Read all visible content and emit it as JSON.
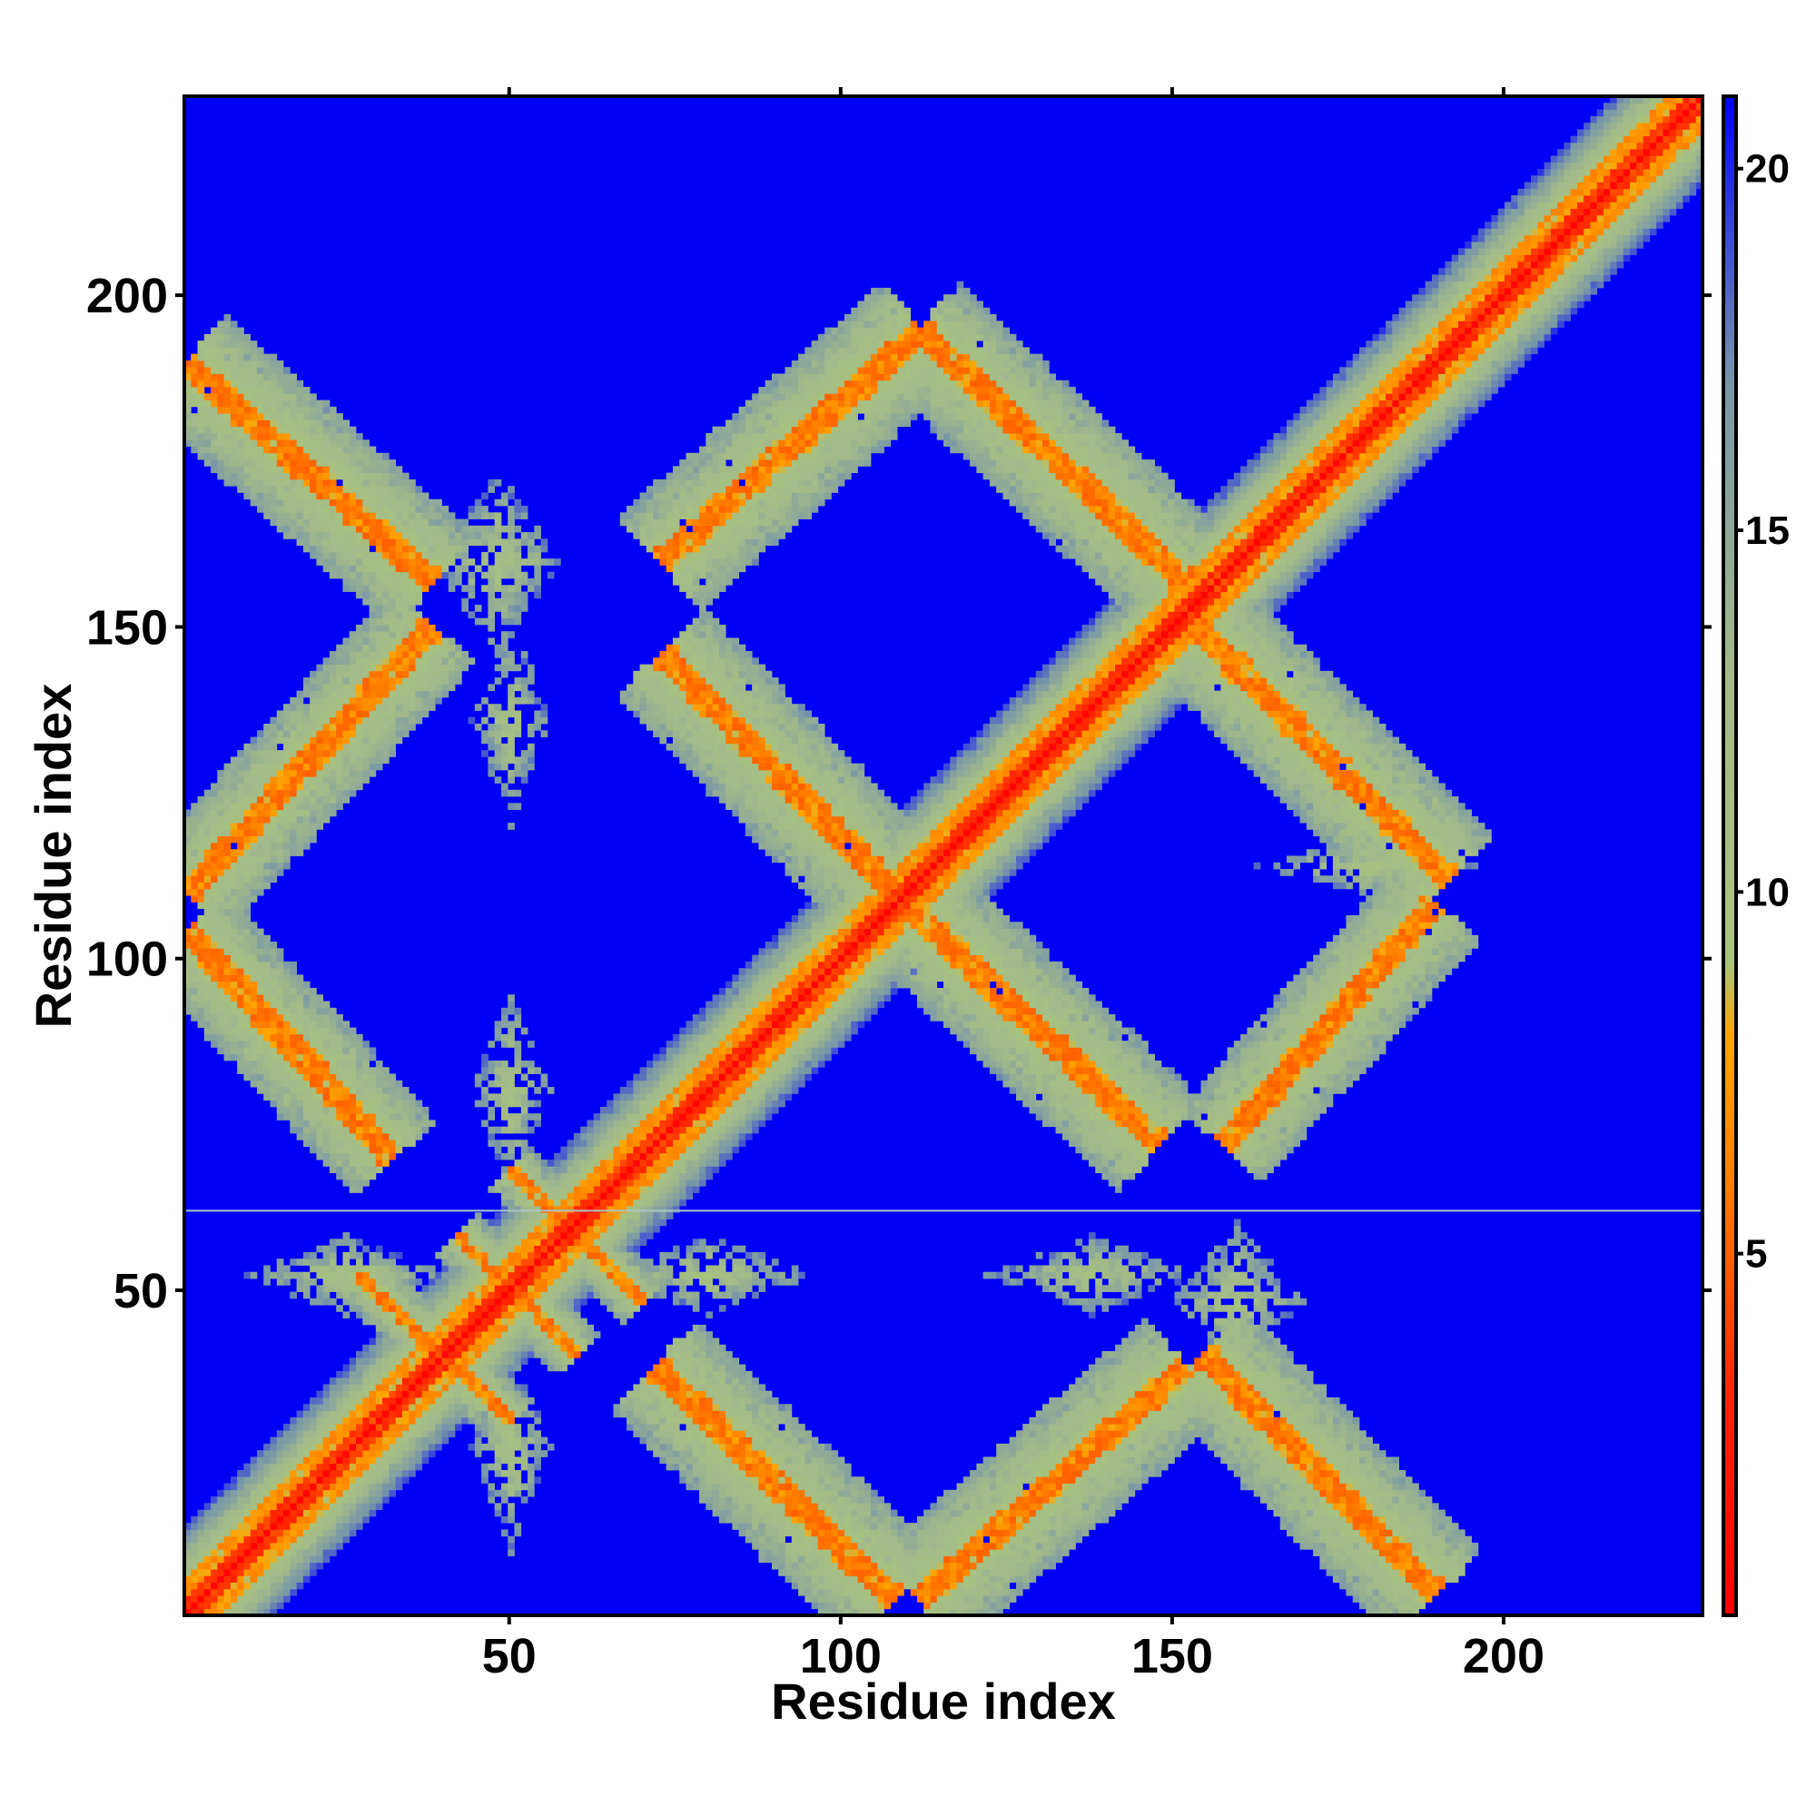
{
  "chart_data": {
    "type": "heatmap",
    "title": "",
    "xlabel": "Residue index",
    "ylabel": "Residue index",
    "xlim": [
      1,
      230
    ],
    "ylim": [
      1,
      230
    ],
    "x_ticks": [
      50,
      100,
      150,
      200
    ],
    "y_ticks": [
      50,
      100,
      150,
      200
    ],
    "colorbar": {
      "range": [
        0,
        21
      ],
      "ticks": [
        5,
        10,
        15,
        20
      ],
      "stops": [
        {
          "value": 0,
          "color": "#ff0000"
        },
        {
          "value": 3,
          "color": "#ff2200"
        },
        {
          "value": 6,
          "color": "#ff7f00"
        },
        {
          "value": 8,
          "color": "#ffa500"
        },
        {
          "value": 9,
          "color": "#a8c47a"
        },
        {
          "value": 13,
          "color": "#a3b98a"
        },
        {
          "value": 17,
          "color": "#7a97a8"
        },
        {
          "value": 21,
          "color": "#0000ff"
        }
      ],
      "background_value": 21
    },
    "background_color": "#0000f5",
    "empty_row_line": {
      "y": 62,
      "color": "#a8c4c4"
    },
    "structures": [
      {
        "kind": "diagonal",
        "start": 1,
        "end": 230,
        "width": 13
      },
      {
        "kind": "band",
        "x1": 1,
        "y1": 190,
        "x2": 38,
        "y2": 157,
        "width": 9
      },
      {
        "kind": "band",
        "x1": 1,
        "y1": 110,
        "x2": 38,
        "y2": 150,
        "width": 8
      },
      {
        "kind": "band",
        "x1": 1,
        "y1": 104,
        "x2": 32,
        "y2": 70,
        "width": 8
      },
      {
        "kind": "band",
        "x1": 73,
        "y1": 146,
        "x2": 110,
        "y2": 108,
        "width": 9
      },
      {
        "kind": "band",
        "x1": 110,
        "y1": 108,
        "x2": 148,
        "y2": 72,
        "width": 9
      },
      {
        "kind": "band",
        "x1": 73,
        "y1": 160,
        "x2": 112,
        "y2": 195,
        "width": 9
      },
      {
        "kind": "band",
        "x1": 112,
        "y1": 195,
        "x2": 152,
        "y2": 157,
        "width": 9
      },
      {
        "kind": "band",
        "x1": 152,
        "y1": 152,
        "x2": 192,
        "y2": 112,
        "width": 9
      },
      {
        "kind": "band",
        "x1": 158,
        "y1": 72,
        "x2": 190,
        "y2": 108,
        "width": 8
      },
      {
        "kind": "band",
        "x1": 72,
        "y1": 38,
        "x2": 108,
        "y2": 3,
        "width": 9
      },
      {
        "kind": "band",
        "x1": 112,
        "y1": 3,
        "x2": 152,
        "y2": 38,
        "width": 9
      },
      {
        "kind": "band",
        "x1": 155,
        "y1": 40,
        "x2": 190,
        "y2": 4,
        "width": 9
      },
      {
        "kind": "band",
        "x1": 27,
        "y1": 52,
        "x2": 50,
        "y2": 30,
        "width": 4
      },
      {
        "kind": "band",
        "x1": 42,
        "y1": 58,
        "x2": 60,
        "y2": 40,
        "width": 4
      },
      {
        "kind": "band",
        "x1": 50,
        "y1": 68,
        "x2": 70,
        "y2": 48,
        "width": 4
      },
      {
        "kind": "star",
        "cx": 48,
        "cy": 160,
        "rx": 10,
        "ry": 14,
        "strength": 0.55
      },
      {
        "kind": "star",
        "cx": 50,
        "cy": 136,
        "rx": 6,
        "ry": 16,
        "strength": 0.55
      },
      {
        "kind": "star",
        "cx": 50,
        "cy": 80,
        "rx": 6,
        "ry": 16,
        "strength": 0.55
      },
      {
        "kind": "star",
        "cx": 50,
        "cy": 26,
        "rx": 6,
        "ry": 16,
        "strength": 0.55
      },
      {
        "kind": "star",
        "cx": 25,
        "cy": 52,
        "rx": 16,
        "ry": 6,
        "strength": 0.55
      },
      {
        "kind": "star",
        "cx": 80,
        "cy": 52,
        "rx": 16,
        "ry": 6,
        "strength": 0.55
      },
      {
        "kind": "star",
        "cx": 138,
        "cy": 52,
        "rx": 16,
        "ry": 6,
        "strength": 0.55
      },
      {
        "kind": "star",
        "cx": 180,
        "cy": 114,
        "rx": 18,
        "ry": 5,
        "strength": 0.5
      },
      {
        "kind": "star",
        "cx": 160,
        "cy": 48,
        "rx": 10,
        "ry": 12,
        "strength": 0.5
      }
    ]
  }
}
